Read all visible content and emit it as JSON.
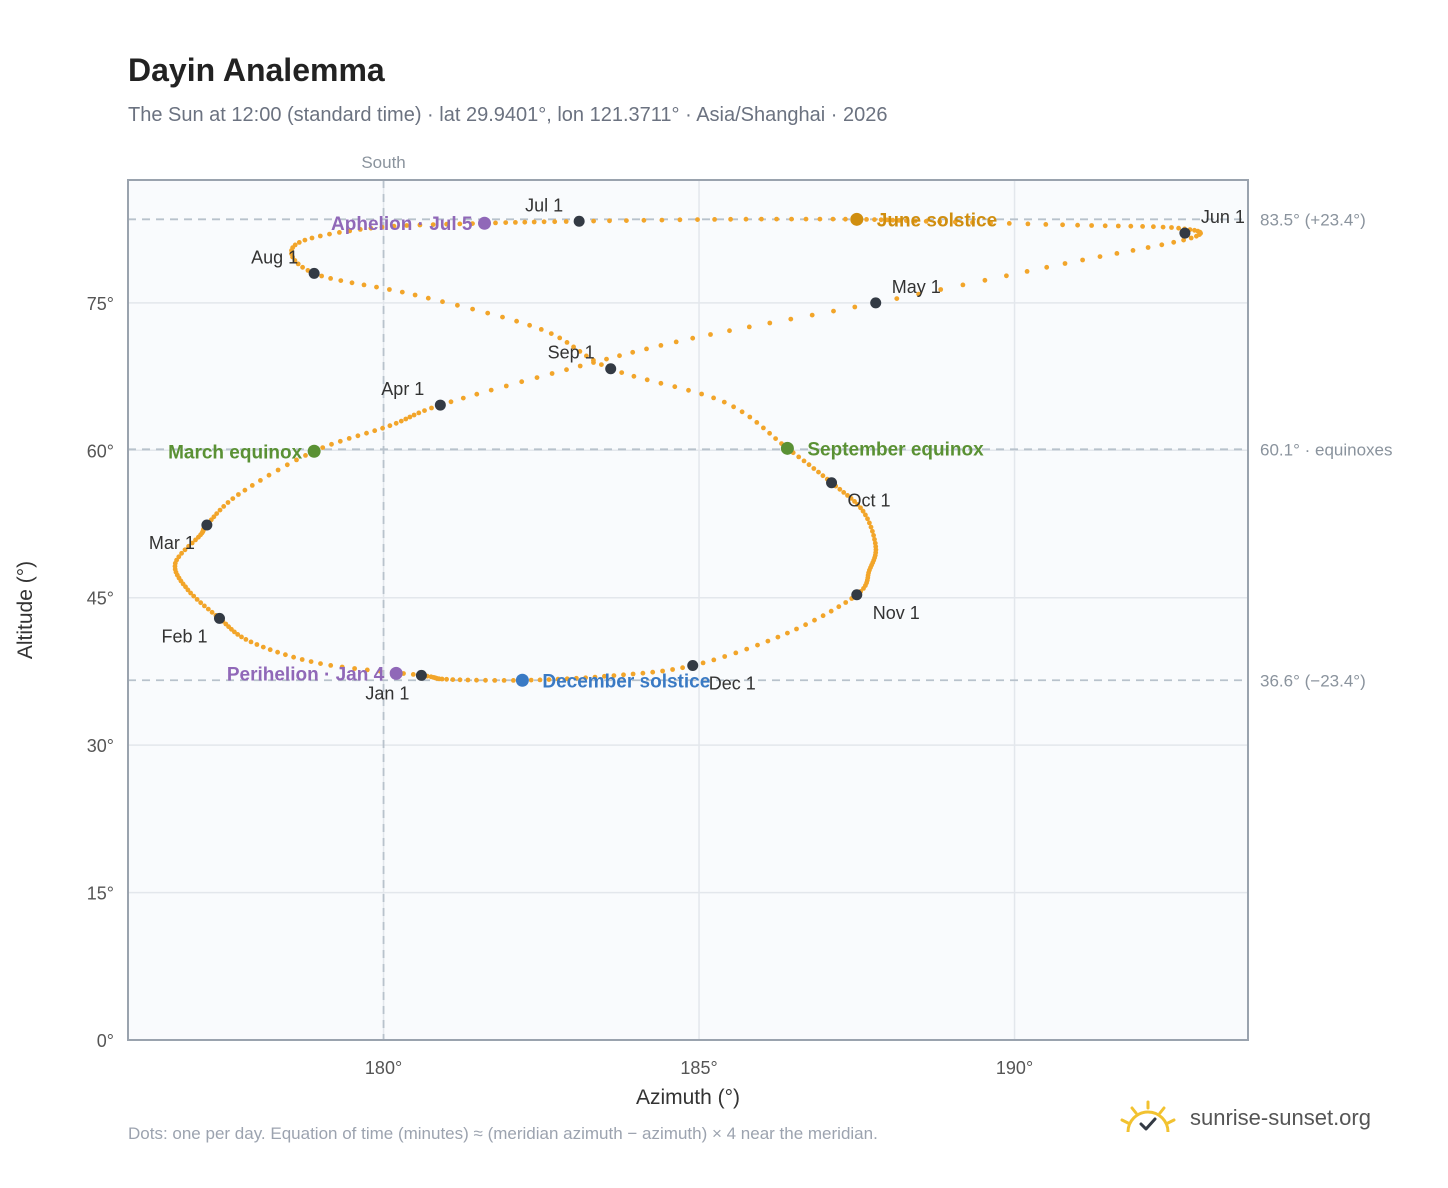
{
  "header": {
    "title": "Dayin Analemma",
    "subtitle": "The Sun at 12:00 (standard time) · lat 29.9401°, lon 121.3711° · Asia/Shanghai · 2026"
  },
  "footer": {
    "note": "Dots: one per day. Equation of time (minutes) ≈ (meridian azimuth − azimuth) × 4 near the meridian.",
    "brand": "sunrise-sunset.org"
  },
  "colors": {
    "path": "#f2a52a",
    "month": "#333a44",
    "equinox": "#5a9134",
    "june": "#d08e0f",
    "december": "#3a7ac4",
    "apsis": "#9068b8",
    "grid": "#e3e7ec",
    "axis": "#9aa3ae",
    "plot_bg": "#f9fbfd",
    "refline": "#b8c2cc"
  },
  "icons": {
    "brand": "sun-check-icon"
  },
  "chart_data": {
    "type": "scatter",
    "xlabel": "Azimuth (°)",
    "ylabel": "Altitude (°)",
    "xlim": [
      175.95,
      193.7
    ],
    "ylim": [
      0,
      87.5
    ],
    "xticks": [
      180,
      185,
      190
    ],
    "xtick_labels": [
      "180°",
      "185°",
      "190°"
    ],
    "yticks": [
      0,
      15,
      30,
      45,
      60,
      75
    ],
    "ytick_labels": [
      "0°",
      "15°",
      "30°",
      "45°",
      "60°",
      "75°"
    ],
    "grid": true,
    "south": {
      "azimuth": 180,
      "label": "South"
    },
    "reference_lines": [
      {
        "altitude": 83.5,
        "label": "83.5° (+23.4°)"
      },
      {
        "altitude": 60.1,
        "label": "60.1° · equinoxes"
      },
      {
        "altitude": 36.6,
        "label": "36.6° (−23.4°)"
      }
    ],
    "path": [
      [
        180.6,
        37.1
      ],
      [
        179.0,
        38.3
      ],
      [
        177.9,
        40.5
      ],
      [
        177.4,
        42.9
      ],
      [
        176.9,
        45.8
      ],
      [
        176.7,
        48.5
      ],
      [
        177.1,
        51.4
      ],
      [
        177.2,
        52.4
      ],
      [
        177.7,
        55.5
      ],
      [
        178.9,
        59.9
      ],
      [
        180.1,
        62.5
      ],
      [
        180.9,
        64.6
      ],
      [
        182.9,
        68.2
      ],
      [
        184.9,
        71.4
      ],
      [
        187.8,
        75.0
      ],
      [
        190.8,
        79.0
      ],
      [
        192.8,
        81.6
      ],
      [
        192.6,
        82.6
      ],
      [
        191.0,
        82.9
      ],
      [
        188.6,
        83.3
      ],
      [
        187.5,
        83.5
      ],
      [
        185.5,
        83.5
      ],
      [
        183.1,
        83.3
      ],
      [
        181.6,
        83.1
      ],
      [
        179.8,
        82.6
      ],
      [
        178.6,
        80.9
      ],
      [
        178.9,
        78.0
      ],
      [
        180.5,
        75.8
      ],
      [
        182.5,
        72.3
      ],
      [
        183.6,
        68.3
      ],
      [
        185.4,
        64.9
      ],
      [
        186.4,
        60.2
      ],
      [
        187.1,
        56.7
      ],
      [
        187.6,
        53.8
      ],
      [
        187.8,
        50.2
      ],
      [
        187.7,
        47.8
      ],
      [
        187.5,
        45.3
      ],
      [
        186.4,
        41.4
      ],
      [
        184.9,
        38.1
      ],
      [
        183.5,
        37.0
      ],
      [
        182.2,
        36.6
      ],
      [
        181.0,
        36.7
      ],
      [
        180.6,
        37.1
      ]
    ],
    "months": [
      {
        "label": "Jan 1",
        "x": 180.6,
        "y": 37.1,
        "anchor": "below-left"
      },
      {
        "label": "Feb 1",
        "x": 177.4,
        "y": 42.9,
        "anchor": "below-left"
      },
      {
        "label": "Mar 1",
        "x": 177.2,
        "y": 52.4,
        "anchor": "below-left"
      },
      {
        "label": "Apr 1",
        "x": 180.9,
        "y": 64.6,
        "anchor": "above-left"
      },
      {
        "label": "May 1",
        "x": 187.8,
        "y": 75.0,
        "anchor": "above-right"
      },
      {
        "label": "Jun 1",
        "x": 192.7,
        "y": 82.1,
        "anchor": "above-right"
      },
      {
        "label": "Jul 1",
        "x": 183.1,
        "y": 83.3,
        "anchor": "above-left"
      },
      {
        "label": "Aug 1",
        "x": 178.9,
        "y": 78.0,
        "anchor": "above-left"
      },
      {
        "label": "Sep 1",
        "x": 183.6,
        "y": 68.3,
        "anchor": "above-left"
      },
      {
        "label": "Oct 1",
        "x": 187.1,
        "y": 56.7,
        "anchor": "below-right"
      },
      {
        "label": "Nov 1",
        "x": 187.5,
        "y": 45.3,
        "anchor": "below-right"
      },
      {
        "label": "Dec 1",
        "x": 184.9,
        "y": 38.1,
        "anchor": "below-right"
      }
    ],
    "events": [
      {
        "label": "March equinox",
        "x": 178.9,
        "y": 59.9,
        "color_key": "equinox",
        "side": "left"
      },
      {
        "label": "September equinox",
        "x": 186.4,
        "y": 60.2,
        "color_key": "equinox",
        "side": "right"
      },
      {
        "label": "June solstice",
        "x": 187.5,
        "y": 83.5,
        "color_key": "june",
        "side": "right"
      },
      {
        "label": "December solstice",
        "x": 182.2,
        "y": 36.6,
        "color_key": "december",
        "side": "right"
      },
      {
        "label": "Aphelion · Jul 5",
        "x": 181.6,
        "y": 83.1,
        "color_key": "apsis",
        "side": "left"
      },
      {
        "label": "Perihelion · Jan 4",
        "x": 180.2,
        "y": 37.3,
        "color_key": "apsis",
        "side": "left"
      }
    ]
  }
}
